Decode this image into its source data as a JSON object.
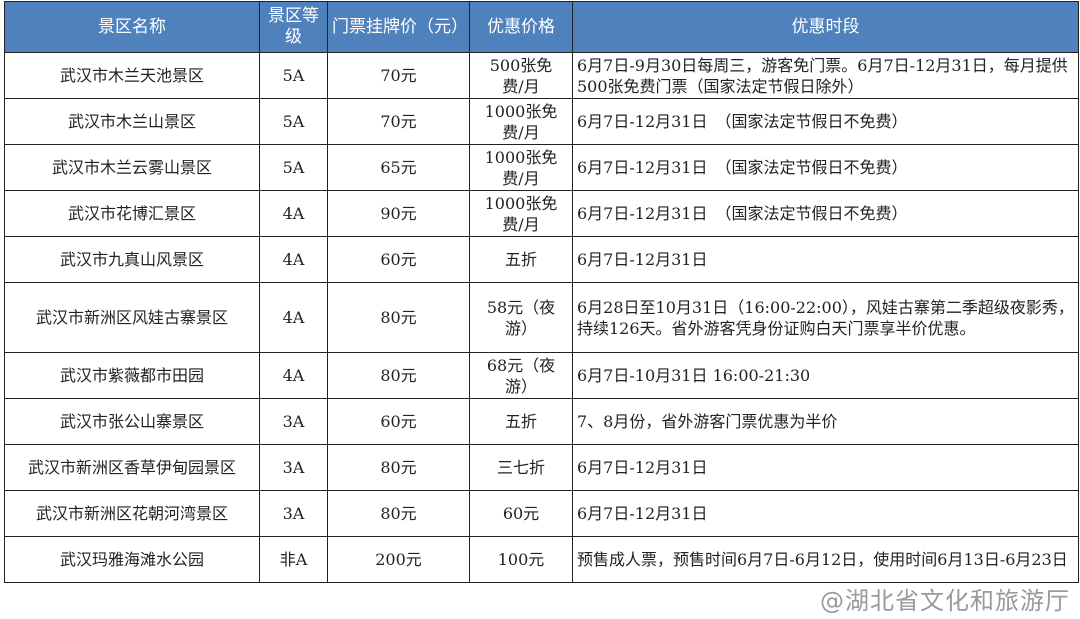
{
  "headers": [
    "景区名称",
    "景区等级",
    "门票挂牌价（元）",
    "优惠价格",
    "优惠时段"
  ],
  "header_color": "#4f81bd",
  "rows": [
    {
      "name": "武汉市木兰天池景区",
      "level": "5A",
      "price": "70元",
      "discount": "500张免费/月",
      "period": "6月7日-9月30日每周三，游客免门票。6月7日-12月31日，每月提供500张免费门票（国家法定节假日除外）"
    },
    {
      "name": "武汉市木兰山景区",
      "level": "5A",
      "price": "70元",
      "discount": "1000张免费/月",
      "period": "6月7日-12月31日　（国家法定节假日不免费）"
    },
    {
      "name": "武汉市木兰云雾山景区",
      "level": "5A",
      "price": "65元",
      "discount": "1000张免费/月",
      "period": "6月7日-12月31日　（国家法定节假日不免费）"
    },
    {
      "name": "武汉市花博汇景区",
      "level": "4A",
      "price": "90元",
      "discount": "1000张免费/月",
      "period": "6月7日-12月31日　（国家法定节假日不免费）"
    },
    {
      "name": "武汉市九真山风景区",
      "level": "4A",
      "price": "60元",
      "discount": "五折",
      "period": "6月7日-12月31日"
    },
    {
      "name": "武汉市新洲区风娃古寨景区",
      "level": "4A",
      "price": "80元",
      "discount": "58元（夜游）",
      "period": "6月28日至10月31日（16:00-22:00），风娃古寨第二季超级夜影秀，持续126天。省外游客凭身份证购白天门票享半价优惠。"
    },
    {
      "name": "武汉市紫薇都市田园",
      "level": "4A",
      "price": "80元",
      "discount": "68元（夜游）",
      "period": "6月7日-10月31日 16:00-21:30"
    },
    {
      "name": "武汉市张公山寨景区",
      "level": "3A",
      "price": "60元",
      "discount": "五折",
      "period": "7、8月份，省外游客门票优惠为半价"
    },
    {
      "name": "武汉市新洲区香草伊甸园景区",
      "level": "3A",
      "price": "80元",
      "discount": "三七折",
      "period": "6月7日-12月31日"
    },
    {
      "name": "武汉市新洲区花朝河湾景区",
      "level": "3A",
      "price": "80元",
      "discount": "60元",
      "period": "6月7日-12月31日"
    },
    {
      "name": "武汉玛雅海滩水公园",
      "level": "非A",
      "price": "200元",
      "discount": "100元",
      "period": "预售成人票，预售时间6月7日-6月12日，使用时间6月13日-6月23日"
    }
  ],
  "watermark": "@湖北省文化和旅游厅"
}
